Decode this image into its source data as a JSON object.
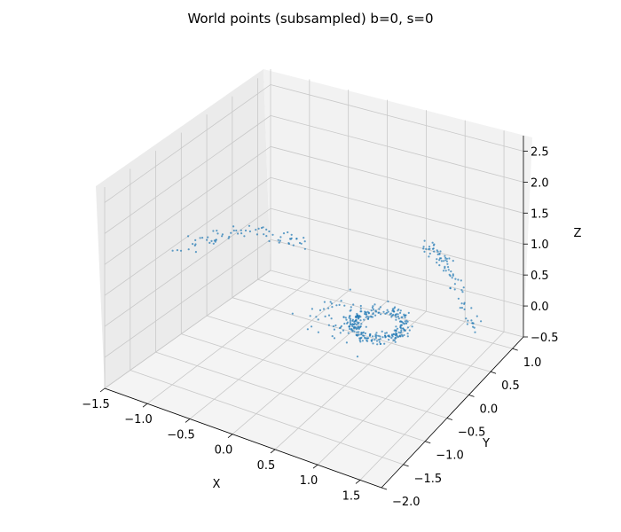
{
  "chart_data": {
    "type": "scatter",
    "projection": "3d",
    "title": "World points (subsampled) b=0, s=0",
    "xlabel": "X",
    "ylabel": "Y",
    "zlabel": "Z",
    "xlim": [
      -1.5,
      1.75
    ],
    "ylim": [
      -2.0,
      1.25
    ],
    "zlim": [
      -0.5,
      2.75
    ],
    "xticks": [
      "−1.5",
      "−1.0",
      "−0.5",
      "0.0",
      "0.5",
      "1.0",
      "1.5"
    ],
    "yticks": [
      "−2.0",
      "−1.5",
      "−1.0",
      "−0.5",
      "0.0",
      "0.5",
      "1.0"
    ],
    "zticks": [
      "−0.5",
      "0.0",
      "0.5",
      "1.0",
      "1.5",
      "2.0",
      "2.5"
    ],
    "grid": true,
    "marker_color": "#1f77b4",
    "series": [
      {
        "name": "",
        "clusters": [
          {
            "label": "dense ring",
            "center": [
              0.55,
              0.15,
              0.05
            ],
            "radius": 0.28,
            "spread": 0.12,
            "count": 260
          },
          {
            "label": "left arc",
            "from": [
              -1.4,
              -0.9,
              1.1
            ],
            "to": [
              -0.4,
              0.2,
              1.0
            ],
            "spread": 0.15,
            "count": 70
          },
          {
            "label": "right arc",
            "from": [
              0.6,
              1.1,
              0.7
            ],
            "to": [
              1.7,
              0.2,
              0.4
            ],
            "spread": 0.12,
            "count": 80
          },
          {
            "label": "scatter",
            "center": [
              0.3,
              -0.2,
              0.3
            ],
            "spread": 0.6,
            "count": 60
          }
        ]
      }
    ]
  },
  "colors": {
    "pane_left": "#ebebeb",
    "pane_right": "#f2f2f2",
    "pane_floor": "#f4f4f4",
    "grid": "#c8c8c8",
    "points": "#1f77b4"
  }
}
